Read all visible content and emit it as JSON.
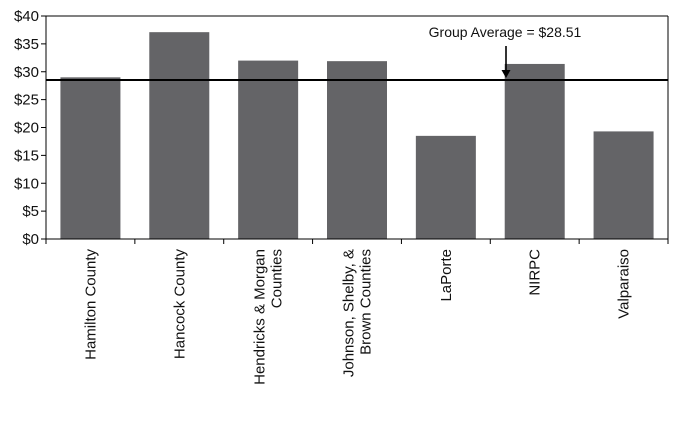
{
  "colors": {
    "bar": "#646467",
    "axis": "#000000",
    "average_line": "#000000"
  },
  "chart_data": {
    "type": "bar",
    "categories": [
      [
        "Hamilton County"
      ],
      [
        "Hancock County"
      ],
      [
        "Hendricks & Morgan",
        "Counties"
      ],
      [
        "Johnson, Shelby, &",
        "Brown Counties"
      ],
      [
        "LaPorte"
      ],
      [
        "NIRPC"
      ],
      [
        "Valparaiso"
      ]
    ],
    "values": [
      29.0,
      37.1,
      32.0,
      31.9,
      18.5,
      31.4,
      19.3
    ],
    "ylim": [
      0,
      40
    ],
    "yticks": [
      0,
      5,
      10,
      15,
      20,
      25,
      30,
      35,
      40
    ],
    "ytick_labels": [
      "$0",
      "$5",
      "$10",
      "$15",
      "$20",
      "$25",
      "$30",
      "$35",
      "$40"
    ],
    "grid": false,
    "reference_line": {
      "value": 28.51,
      "label": "Group Average = $28.51"
    }
  }
}
